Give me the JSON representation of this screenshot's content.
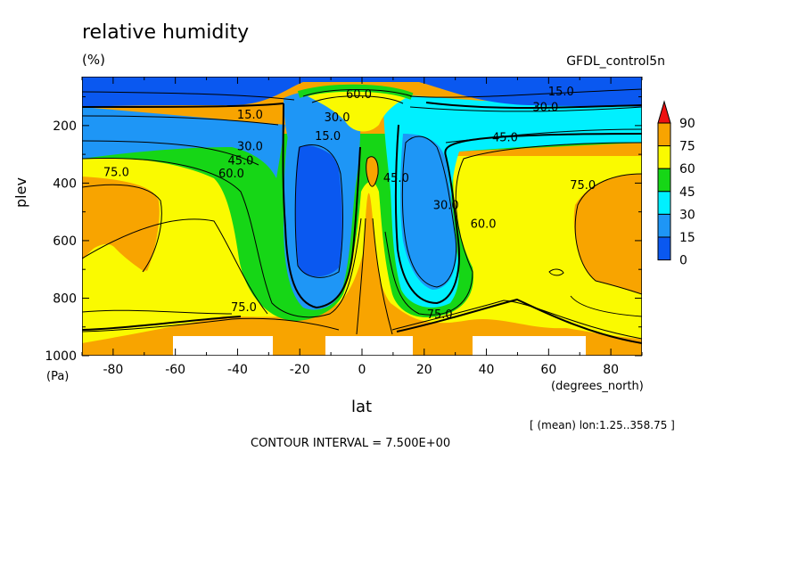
{
  "header": {
    "title": "relative humidity",
    "units": "(%)",
    "dataset": "GFDL_control5n"
  },
  "footer": {
    "subset": "[ (mean) lon:1.25..358.75 ]",
    "contour_interval": "CONTOUR INTERVAL = 7.500E+00"
  },
  "colors": {
    "fill_0_15": "#0a58f0",
    "fill_15_30": "#1e96f6",
    "fill_30_45": "#00f0ff",
    "fill_45_60": "#16d616",
    "fill_60_75": "#fafa00",
    "fill_75_90": "#f8a400",
    "fill_over_90": "#ee1111",
    "land": "#ffffff"
  },
  "chart_data": {
    "type": "contour",
    "title": "relative humidity",
    "units": "(%)",
    "xlabel": "lat",
    "xunits": "(degrees_north)",
    "ylabel": "plev",
    "yunits": "(Pa)",
    "xlim": [
      -90,
      90
    ],
    "ylim": [
      1000,
      30
    ],
    "y_inverted": true,
    "xticks": [
      -80,
      -60,
      -40,
      -20,
      0,
      20,
      40,
      60,
      80
    ],
    "yticks": [
      200,
      400,
      600,
      800,
      1000
    ],
    "contour_interval": 7.5,
    "fill_levels": [
      0,
      15,
      30,
      45,
      60,
      75,
      90
    ],
    "colorbar": {
      "labels": [
        "90",
        "75",
        "60",
        "45",
        "30",
        "15",
        "0"
      ],
      "extend": "max"
    },
    "contour_labels": [
      {
        "text": "15.0",
        "lat": -36,
        "plev": 175
      },
      {
        "text": "30.0",
        "lat": -36,
        "plev": 285
      },
      {
        "text": "45.0",
        "lat": -39,
        "plev": 335
      },
      {
        "text": "60.0",
        "lat": -42,
        "plev": 380
      },
      {
        "text": "75.0",
        "lat": -79,
        "plev": 375
      },
      {
        "text": "75.0",
        "lat": -38,
        "plev": 845
      },
      {
        "text": "15.0",
        "lat": -11,
        "plev": 250
      },
      {
        "text": "30.0",
        "lat": -8,
        "plev": 185
      },
      {
        "text": "60.0",
        "lat": -1,
        "plev": 105
      },
      {
        "text": "45.0",
        "lat": 11,
        "plev": 395
      },
      {
        "text": "30.0",
        "lat": 27,
        "plev": 490
      },
      {
        "text": "60.0",
        "lat": 39,
        "plev": 555
      },
      {
        "text": "45.0",
        "lat": 46,
        "plev": 255
      },
      {
        "text": "30.0",
        "lat": 59,
        "plev": 150
      },
      {
        "text": "15.0",
        "lat": 64,
        "plev": 95
      },
      {
        "text": "75.0",
        "lat": 71,
        "plev": 420
      },
      {
        "text": "75.0",
        "lat": 25,
        "plev": 870
      }
    ],
    "land_regions": [
      {
        "lat_min": -60,
        "lat_max": -28
      },
      {
        "lat_min": -12,
        "lat_max": 16
      },
      {
        "lat_min": 35,
        "lat_max": 71
      }
    ]
  }
}
